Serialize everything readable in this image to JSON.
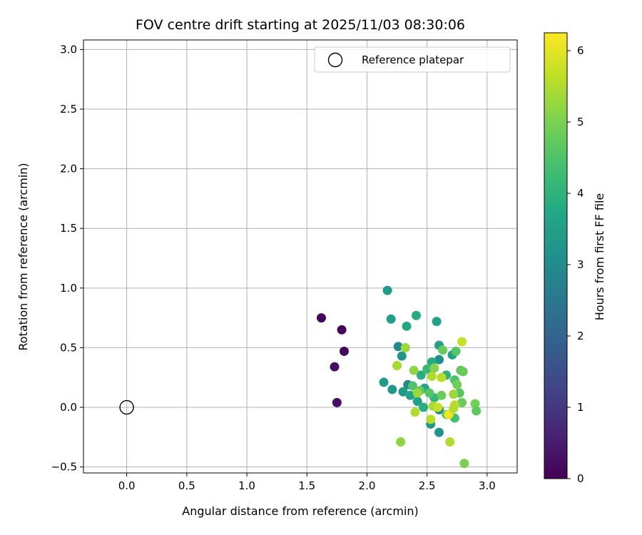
{
  "chart_data": {
    "type": "scatter",
    "title": "FOV centre drift starting at 2025/11/03 08:30:06",
    "xlabel": "Angular distance from reference (arcmin)",
    "ylabel": "Rotation from reference (arcmin)",
    "xlim": [
      -0.36,
      3.25
    ],
    "ylim": [
      -0.55,
      3.08
    ],
    "xticks": [
      0.0,
      0.5,
      1.0,
      1.5,
      2.0,
      2.5,
      3.0
    ],
    "yticks": [
      -0.5,
      0.0,
      0.5,
      1.0,
      1.5,
      2.0,
      2.5,
      3.0
    ],
    "xtick_labels": [
      "0.0",
      "0.5",
      "1.0",
      "1.5",
      "2.0",
      "2.5",
      "3.0"
    ],
    "ytick_labels": [
      "−0.5",
      "0.0",
      "0.5",
      "1.0",
      "1.5",
      "2.0",
      "2.5",
      "3.0"
    ],
    "grid": true,
    "legend": {
      "placement": "top-right",
      "entries": [
        "Reference platepar"
      ]
    },
    "reference_point": {
      "x": 0.0,
      "y": 0.0,
      "label": "Reference platepar"
    },
    "colorbar": {
      "label": "Hours from first FF file",
      "range": [
        0,
        6.25
      ],
      "ticks": [
        0,
        1,
        2,
        3,
        4,
        5,
        6
      ],
      "tick_labels": [
        "0",
        "1",
        "2",
        "3",
        "4",
        "5",
        "6"
      ],
      "colormap": "viridis"
    },
    "points": [
      {
        "x": 1.62,
        "y": 0.75,
        "c": 0.05
      },
      {
        "x": 1.79,
        "y": 0.65,
        "c": 0.1
      },
      {
        "x": 1.81,
        "y": 0.47,
        "c": 0.15
      },
      {
        "x": 1.73,
        "y": 0.34,
        "c": 0.2
      },
      {
        "x": 1.75,
        "y": 0.04,
        "c": 0.25
      },
      {
        "x": 2.17,
        "y": 0.98,
        "c": 3.4
      },
      {
        "x": 2.2,
        "y": 0.74,
        "c": 3.5
      },
      {
        "x": 2.41,
        "y": 0.77,
        "c": 3.8
      },
      {
        "x": 2.58,
        "y": 0.72,
        "c": 3.6
      },
      {
        "x": 2.33,
        "y": 0.68,
        "c": 3.7
      },
      {
        "x": 2.26,
        "y": 0.51,
        "c": 2.9
      },
      {
        "x": 2.29,
        "y": 0.43,
        "c": 3.3
      },
      {
        "x": 2.6,
        "y": 0.52,
        "c": 3.5
      },
      {
        "x": 2.6,
        "y": 0.4,
        "c": 3.1
      },
      {
        "x": 2.14,
        "y": 0.21,
        "c": 3.4
      },
      {
        "x": 2.21,
        "y": 0.15,
        "c": 3.3
      },
      {
        "x": 2.34,
        "y": 0.19,
        "c": 2.9
      },
      {
        "x": 2.3,
        "y": 0.13,
        "c": 3.4
      },
      {
        "x": 2.36,
        "y": 0.1,
        "c": 3.6
      },
      {
        "x": 2.42,
        "y": 0.05,
        "c": 3.5
      },
      {
        "x": 2.48,
        "y": 0.16,
        "c": 3.7
      },
      {
        "x": 2.45,
        "y": 0.27,
        "c": 3.9
      },
      {
        "x": 2.54,
        "y": 0.38,
        "c": 3.8
      },
      {
        "x": 2.5,
        "y": 0.32,
        "c": 4.2
      },
      {
        "x": 2.47,
        "y": 0.0,
        "c": 3.9
      },
      {
        "x": 2.53,
        "y": -0.14,
        "c": 3.3
      },
      {
        "x": 2.6,
        "y": -0.02,
        "c": 3.0
      },
      {
        "x": 2.6,
        "y": -0.21,
        "c": 3.2
      },
      {
        "x": 2.71,
        "y": 0.44,
        "c": 3.6
      },
      {
        "x": 2.66,
        "y": 0.27,
        "c": 4.0
      },
      {
        "x": 2.56,
        "y": 0.08,
        "c": 4.1
      },
      {
        "x": 2.63,
        "y": 0.48,
        "c": 4.8
      },
      {
        "x": 2.74,
        "y": 0.47,
        "c": 4.6
      },
      {
        "x": 2.78,
        "y": 0.31,
        "c": 4.7
      },
      {
        "x": 2.8,
        "y": 0.3,
        "c": 4.8
      },
      {
        "x": 2.73,
        "y": 0.23,
        "c": 4.5
      },
      {
        "x": 2.75,
        "y": 0.19,
        "c": 4.9
      },
      {
        "x": 2.77,
        "y": 0.12,
        "c": 4.6
      },
      {
        "x": 2.79,
        "y": 0.04,
        "c": 4.8
      },
      {
        "x": 2.73,
        "y": -0.09,
        "c": 4.4
      },
      {
        "x": 2.66,
        "y": -0.06,
        "c": 4.7
      },
      {
        "x": 2.9,
        "y": 0.03,
        "c": 4.9
      },
      {
        "x": 2.91,
        "y": -0.03,
        "c": 4.7
      },
      {
        "x": 2.62,
        "y": 0.1,
        "c": 4.8
      },
      {
        "x": 2.52,
        "y": 0.12,
        "c": 4.6
      },
      {
        "x": 2.44,
        "y": 0.14,
        "c": 4.7
      },
      {
        "x": 2.38,
        "y": 0.18,
        "c": 4.5
      },
      {
        "x": 2.39,
        "y": 0.31,
        "c": 5.2
      },
      {
        "x": 2.32,
        "y": 0.5,
        "c": 5.3
      },
      {
        "x": 2.25,
        "y": 0.35,
        "c": 5.4
      },
      {
        "x": 2.42,
        "y": 0.12,
        "c": 5.3
      },
      {
        "x": 2.54,
        "y": 0.26,
        "c": 5.5
      },
      {
        "x": 2.56,
        "y": 0.33,
        "c": 5.1
      },
      {
        "x": 2.62,
        "y": 0.25,
        "c": 5.6
      },
      {
        "x": 2.55,
        "y": 0.01,
        "c": 5.4
      },
      {
        "x": 2.4,
        "y": -0.04,
        "c": 5.5
      },
      {
        "x": 2.53,
        "y": -0.1,
        "c": 5.6
      },
      {
        "x": 2.68,
        "y": -0.06,
        "c": 6.1
      },
      {
        "x": 2.69,
        "y": -0.29,
        "c": 5.5
      },
      {
        "x": 2.28,
        "y": -0.29,
        "c": 5.2
      },
      {
        "x": 2.81,
        "y": -0.47,
        "c": 5.0
      },
      {
        "x": 2.79,
        "y": 0.55,
        "c": 5.7
      },
      {
        "x": 2.72,
        "y": 0.11,
        "c": 5.3
      },
      {
        "x": 2.73,
        "y": 0.02,
        "c": 5.6
      },
      {
        "x": 2.72,
        "y": -0.01,
        "c": 5.5
      },
      {
        "x": 2.59,
        "y": 0.0,
        "c": 5.7
      }
    ]
  }
}
